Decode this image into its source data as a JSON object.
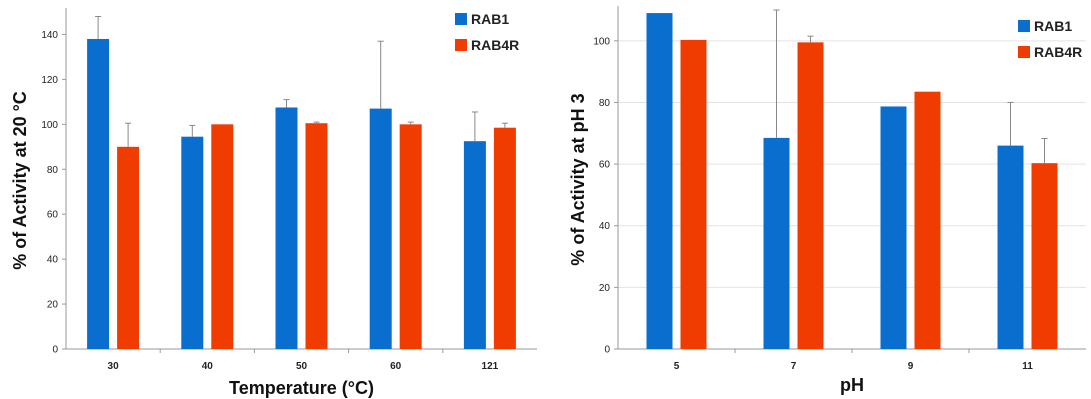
{
  "chart_data": [
    {
      "type": "bar",
      "title": "",
      "xlabel": "Temperature (°C)",
      "ylabel": "% of Activity at 20 °C",
      "ylim": [
        0,
        150
      ],
      "yticks": [
        0,
        20,
        40,
        60,
        80,
        100,
        120,
        140
      ],
      "categories": [
        "30",
        "40",
        "50",
        "60",
        "121"
      ],
      "grid": false,
      "legend": "top-right",
      "series": [
        {
          "name": "RAB1",
          "color": "#0a6ecf",
          "values": [
            138,
            94.5,
            107.5,
            107,
            92.5
          ],
          "errors": [
            10,
            5,
            3.5,
            30,
            13
          ]
        },
        {
          "name": "RAB4R",
          "color": "#f03c00",
          "values": [
            90,
            100,
            100.5,
            100,
            98.5
          ],
          "errors": [
            10.5,
            0,
            0.5,
            1,
            2
          ]
        }
      ]
    },
    {
      "type": "bar",
      "title": "",
      "xlabel": "pH",
      "ylabel": "% of Activity at pH 3",
      "ylim": [
        0,
        110
      ],
      "yticks": [
        0,
        20,
        40,
        60,
        80,
        100
      ],
      "categories": [
        "5",
        "7",
        "9",
        "11"
      ],
      "grid": true,
      "legend": "top-right",
      "series": [
        {
          "name": "RAB1",
          "color": "#0a6ecf",
          "values": [
            109,
            68.5,
            78.7,
            66
          ],
          "errors": [
            0,
            41.5,
            0,
            14
          ]
        },
        {
          "name": "RAB4R",
          "color": "#f03c00",
          "values": [
            100.3,
            99.5,
            83.5,
            60.3
          ],
          "errors": [
            0,
            2,
            0,
            8
          ]
        }
      ]
    }
  ]
}
